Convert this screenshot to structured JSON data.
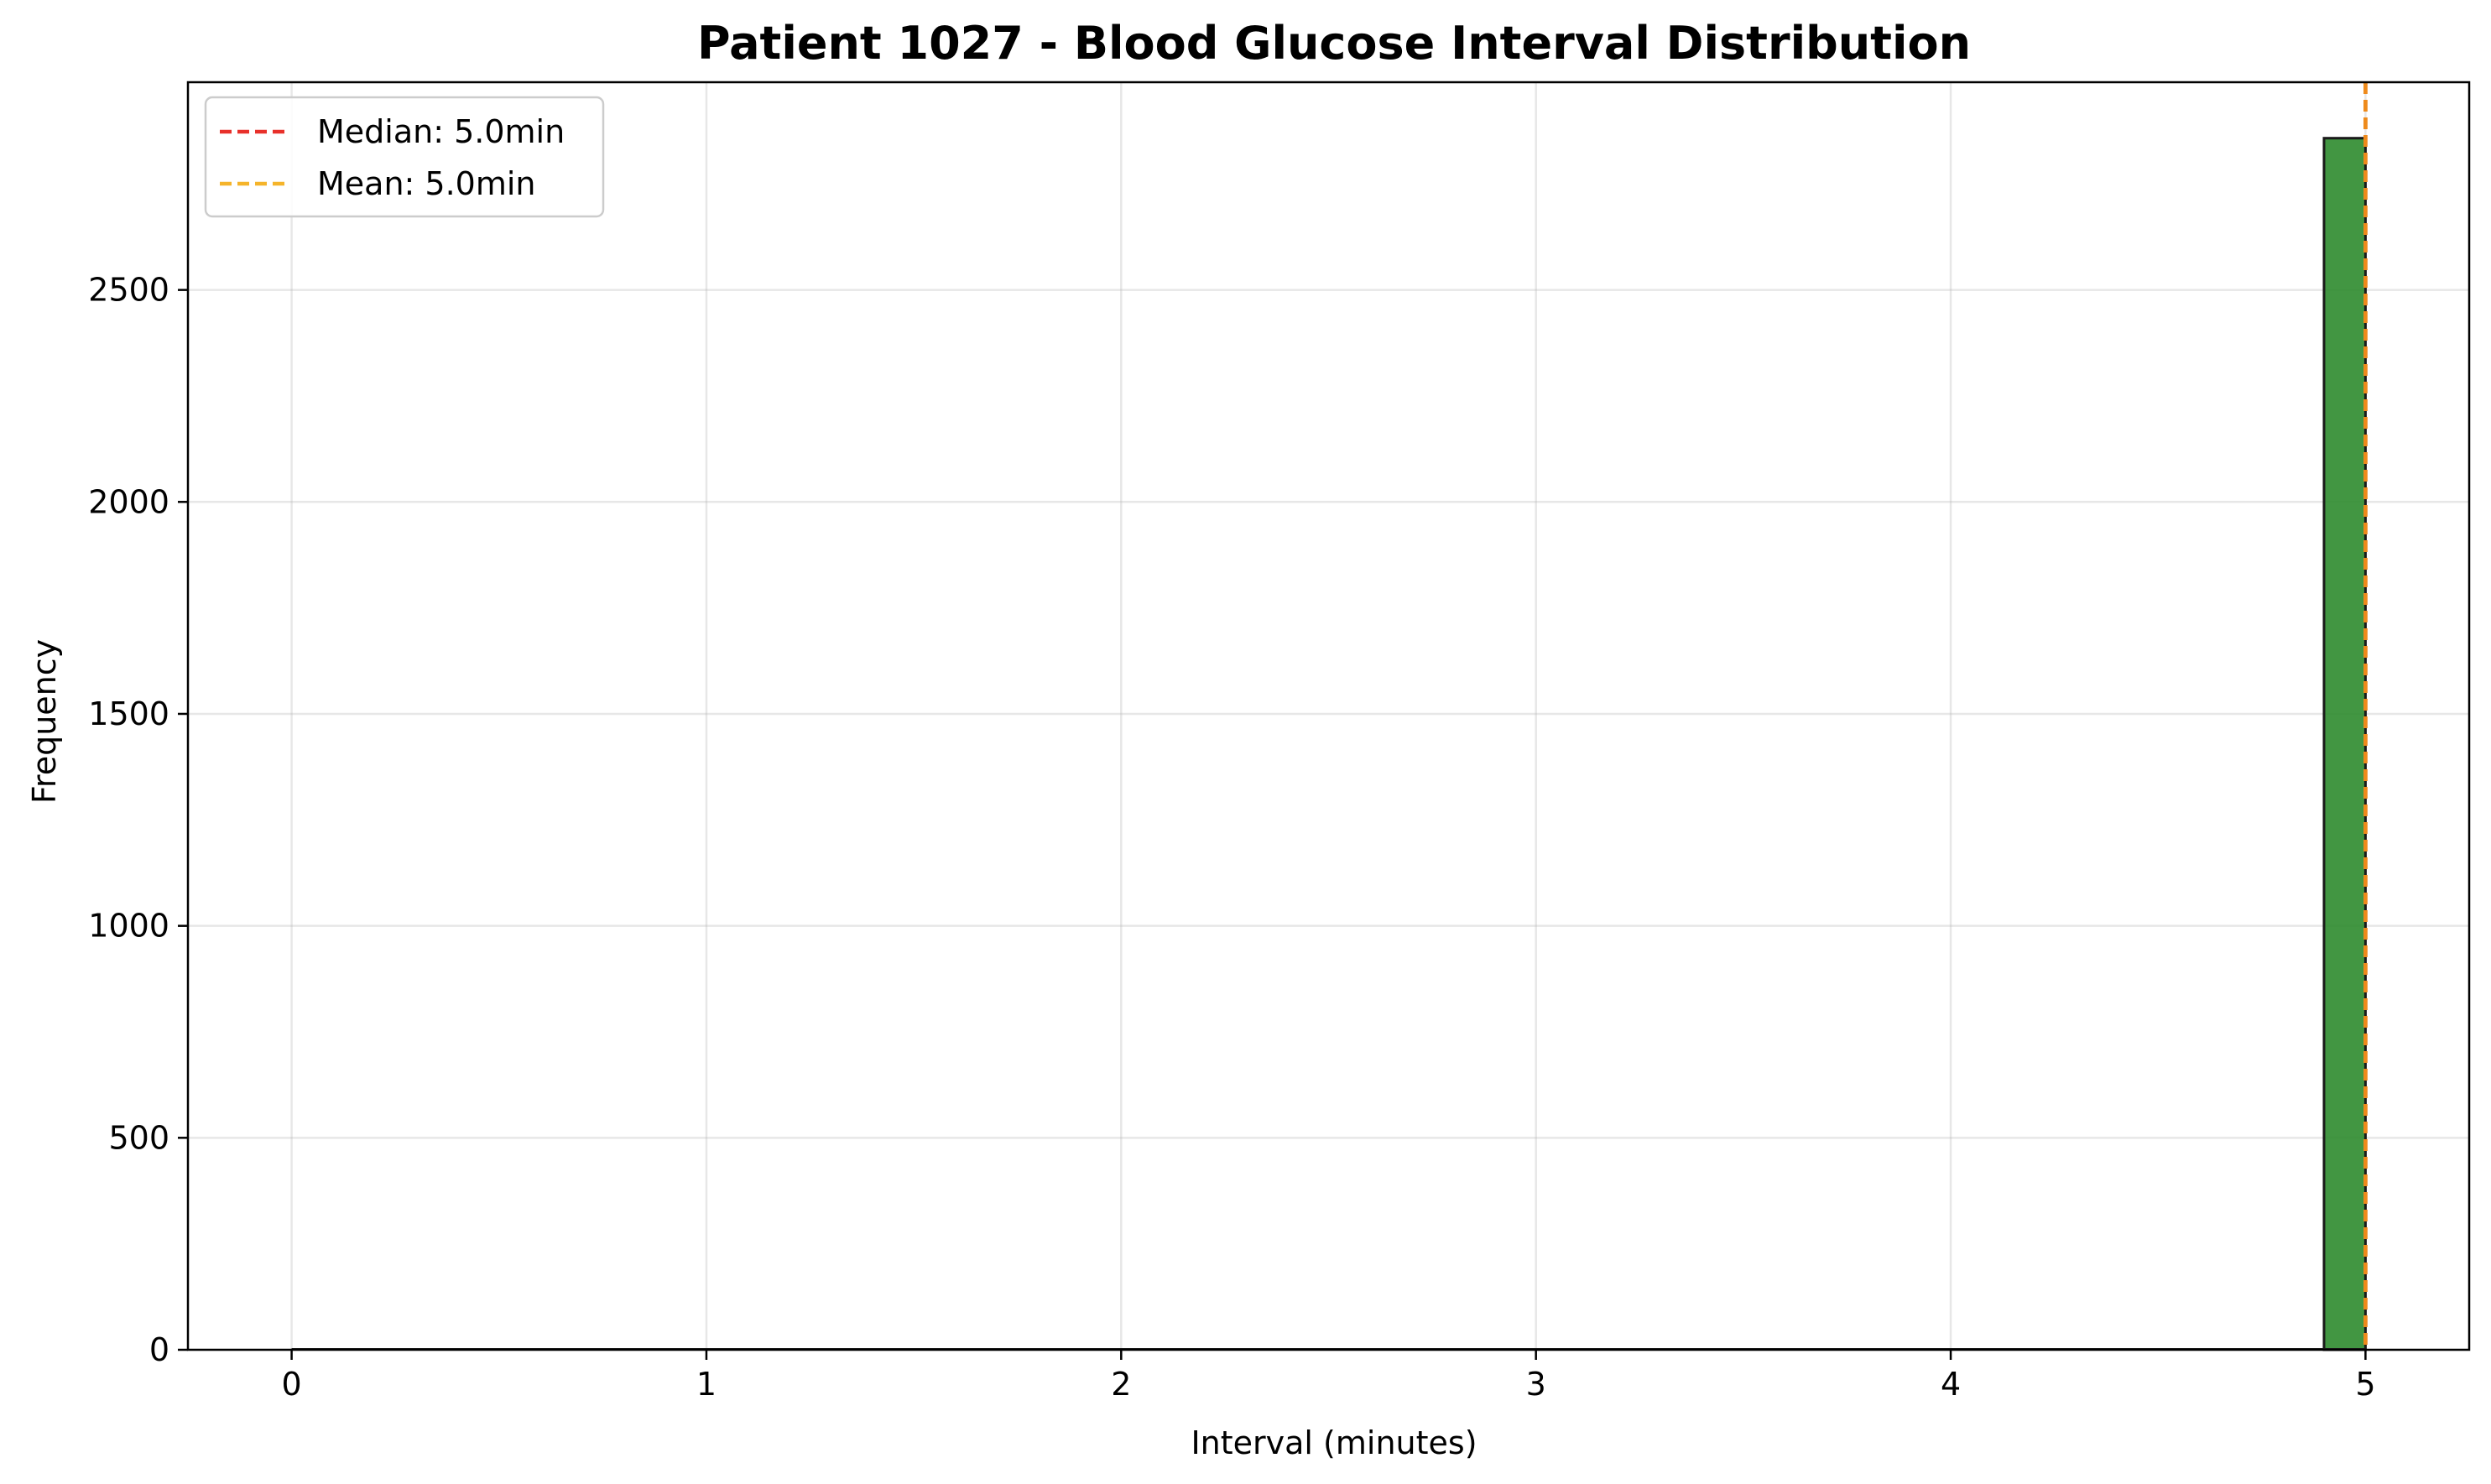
{
  "chart_data": {
    "type": "bar",
    "title": "Patient 1027 - Blood Glucose Interval Distribution",
    "xlabel": "Interval (minutes)",
    "ylabel": "Frequency",
    "xlim": [
      -0.25,
      5.25
    ],
    "ylim": [
      0,
      2990
    ],
    "x_ticks": [
      0,
      1,
      2,
      3,
      4,
      5
    ],
    "x_tick_labels": [
      "0",
      "1",
      "2",
      "3",
      "4",
      "5"
    ],
    "y_ticks": [
      0,
      500,
      1000,
      1500,
      2000,
      2500
    ],
    "y_tick_labels": [
      "0",
      "500",
      "1000",
      "1500",
      "2000",
      "2500"
    ],
    "grid": true,
    "legend_position": "top-left",
    "bars": [
      {
        "x_start": 4.9,
        "x_end": 5.0,
        "value": 2858,
        "color": "#2e8b2e"
      }
    ],
    "reference_lines": [
      {
        "name": "Median: 5.0min",
        "x": 5.0,
        "color": "#e8302a",
        "style": "dashed"
      },
      {
        "name": "Mean: 5.0min",
        "x": 5.0,
        "color": "#f5b42a",
        "style": "dashed"
      }
    ],
    "overlap_line_color": "#ee8a1a"
  }
}
